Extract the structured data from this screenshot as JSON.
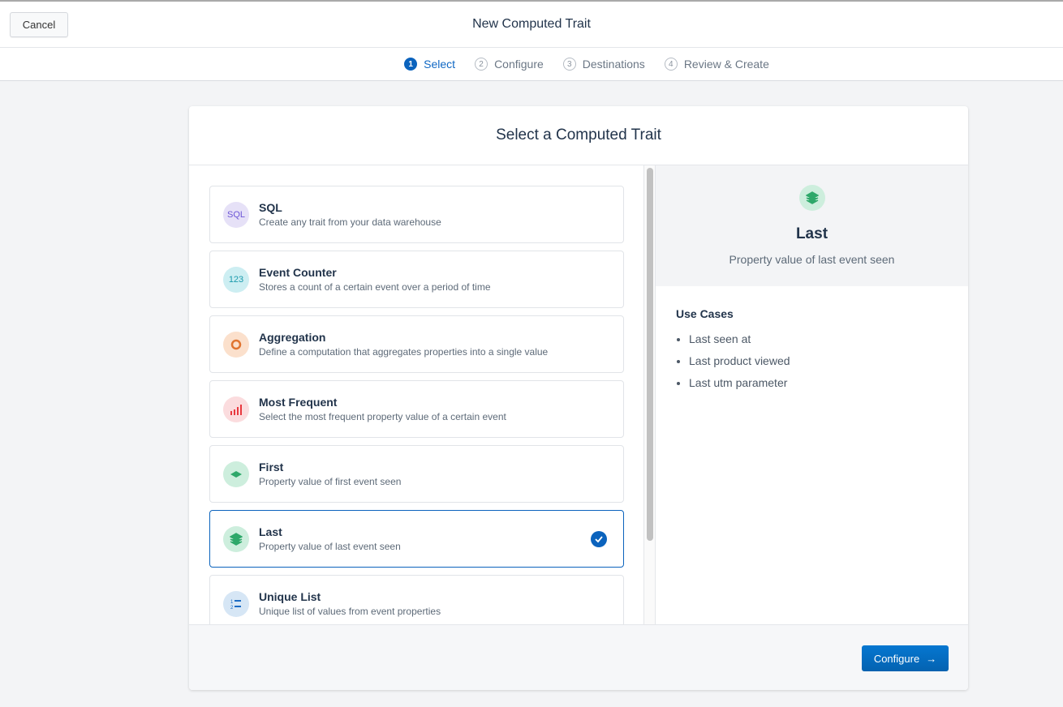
{
  "header": {
    "cancel_label": "Cancel",
    "title": "New Computed Trait"
  },
  "steps": [
    {
      "num": "1",
      "label": "Select",
      "active": true
    },
    {
      "num": "2",
      "label": "Configure"
    },
    {
      "num": "3",
      "label": "Destinations"
    },
    {
      "num": "4",
      "label": "Review & Create"
    }
  ],
  "card": {
    "title": "Select a Computed Trait"
  },
  "traits": [
    {
      "name": "SQL",
      "desc": "Create any trait from your data warehouse",
      "icon": "sql-icon",
      "icon_text": "SQL",
      "bg": "#e6e1f7",
      "fg": "#6c55d6"
    },
    {
      "name": "Event Counter",
      "desc": "Stores a count of a certain event over a period of time",
      "icon": "counter-icon",
      "icon_text": "123",
      "bg": "#cdeef2",
      "fg": "#1a9aac"
    },
    {
      "name": "Aggregation",
      "desc": "Define a computation that aggregates properties into a single value",
      "icon": "aggregation-icon",
      "bg": "#fbe0cc",
      "fg": "#e07430"
    },
    {
      "name": "Most Frequent",
      "desc": "Select the most frequent property value of a certain event",
      "icon": "bar-chart-icon",
      "bg": "#fbdcde",
      "fg": "#e8393f"
    },
    {
      "name": "First",
      "desc": "Property value of first event seen",
      "icon": "layer-icon",
      "bg": "#cdeedd",
      "fg": "#2ea86a"
    },
    {
      "name": "Last",
      "desc": "Property value of last event seen",
      "icon": "layers-stack-icon",
      "bg": "#cdeedd",
      "fg": "#2ea86a",
      "selected": true
    },
    {
      "name": "Unique List",
      "desc": "Unique list of values from event properties",
      "icon": "numbered-list-icon",
      "bg": "#d6e6f5",
      "fg": "#1a6bc4"
    }
  ],
  "detail": {
    "name": "Last",
    "desc": "Property value of last event seen",
    "use_cases_title": "Use Cases",
    "use_cases": [
      "Last seen at",
      "Last product viewed",
      "Last utm parameter"
    ]
  },
  "footer": {
    "configure_label": "Configure"
  },
  "colors": {
    "accent": "#0b63bd"
  }
}
